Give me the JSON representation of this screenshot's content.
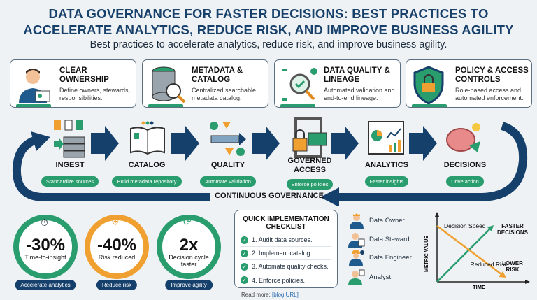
{
  "header": {
    "title_line1": "DATA GOVERNANCE FOR FASTER DECISIONS: BEST PRACTICES TO",
    "title_line2": "ACCELERATE ANALYTICS, REDUCE RISK, AND IMPROVE BUSINESS AGILITY",
    "subtitle": "Best practices to accelerate analytics, reduce risk, and improve business agility."
  },
  "pillars": [
    {
      "title": "CLEAR OWNERSHIP",
      "desc": "Define owners, stewards, responsibilities.",
      "icon": "person-badge-icon"
    },
    {
      "title": "METADATA & CATALOG",
      "desc": "Centralized searchable metadata catalog.",
      "icon": "database-search-icon"
    },
    {
      "title": "DATA QUALITY & LINEAGE",
      "desc": "Automated validation and end-to-end lineage.",
      "icon": "magnifier-check-icon"
    },
    {
      "title": "POLICY & ACCESS CONTROLS",
      "desc": "Role-based access and automated enforcement.",
      "icon": "shield-lock-icon"
    }
  ],
  "flow": {
    "steps": [
      {
        "label": "INGEST",
        "pill": "Standardize sources"
      },
      {
        "label": "CATALOG",
        "pill": "Build metadata repository"
      },
      {
        "label": "QUALITY",
        "pill": "Automate validation"
      },
      {
        "label": "GOVERNED ACCESS",
        "pill": "Enforce policies"
      },
      {
        "label": "ANALYTICS",
        "pill": "Faster insights"
      },
      {
        "label": "DECISIONS",
        "pill": "Drive action"
      }
    ],
    "loop_label": "CONTINUOUS GOVERNANCE"
  },
  "metrics": [
    {
      "value": "-30%",
      "label": "Time-to-insight",
      "pill": "Accelerate analytics",
      "color": "#2a9d6f"
    },
    {
      "value": "-40%",
      "label": "Risk reduced",
      "pill": "Reduce risk",
      "color": "#f0a030"
    },
    {
      "value": "2x",
      "label": "Decision cycle faster",
      "pill": "Improve agility",
      "color": "#2a9d6f"
    }
  ],
  "checklist": {
    "title": "QUICK IMPLEMENTATION CHECKLIST",
    "items": [
      "1. Audit data sources.",
      "2. Implement catalog.",
      "3. Automate quality checks.",
      "4. Enforce policies."
    ]
  },
  "roles": [
    "Data Owner",
    "Data Steward",
    "Data Engineer",
    "Analyst"
  ],
  "trend_chart": {
    "ylabel": "METRIC VALUE",
    "xlabel": "TIME",
    "speed_label": "Decision Speed",
    "risk_label": "Reduced Risk",
    "up_label": "FASTER DECISIONS",
    "down_label": "LOWER RISK",
    "up_color": "#2a9d6f",
    "down_color": "#f0a030"
  },
  "footer": {
    "read_more": "Read more:",
    "link": "[blog URL]"
  },
  "colors": {
    "navy": "#17406b",
    "green": "#2a9d6f",
    "orange": "#f0a030"
  }
}
